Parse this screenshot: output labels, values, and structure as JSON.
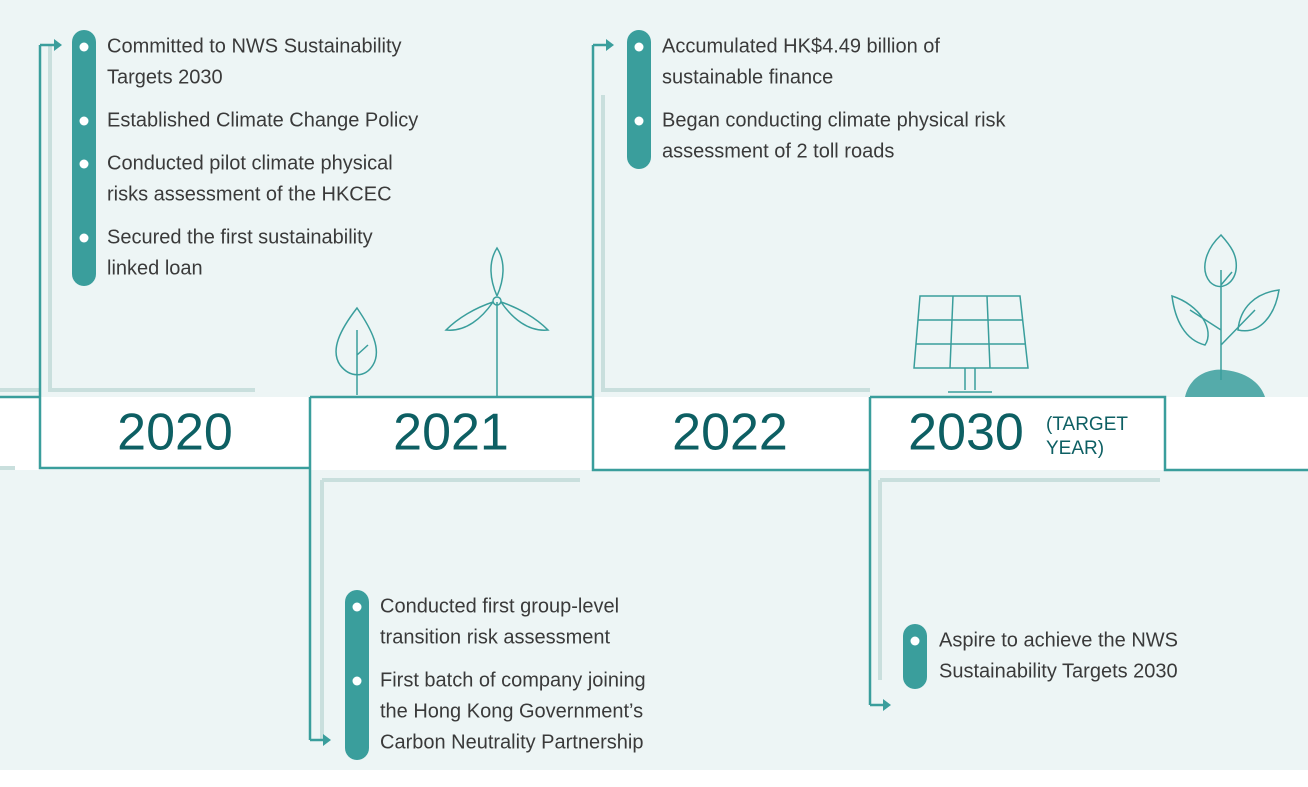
{
  "milestones": [
    {
      "year": "2020",
      "items": [
        {
          "lines": [
            "Committed to NWS Sustainability",
            "Targets 2030"
          ]
        },
        {
          "lines": [
            "Established Climate Change Policy"
          ]
        },
        {
          "lines": [
            "Conducted pilot climate physical",
            "risks assessment of the HKCEC"
          ]
        },
        {
          "lines": [
            "Secured the first sustainability",
            "linked loan"
          ]
        }
      ]
    },
    {
      "year": "2021",
      "items": [
        {
          "lines": [
            "Conducted first group-level",
            "transition risk assessment"
          ]
        },
        {
          "lines": [
            "First batch of company joining",
            "the Hong Kong Government’s",
            "Carbon Neutrality Partnership"
          ]
        }
      ]
    },
    {
      "year": "2022",
      "items": [
        {
          "lines": [
            "Accumulated HK$4.49 billion of",
            "sustainable finance"
          ]
        },
        {
          "lines": [
            "Began conducting climate physical risk",
            "assessment of 2 toll roads"
          ]
        }
      ]
    },
    {
      "year": "2030",
      "suffix": [
        "(TARGET",
        "YEAR)"
      ],
      "items": [
        {
          "lines": [
            "Aspire to achieve the NWS",
            "Sustainability Targets 2030"
          ]
        }
      ]
    }
  ]
}
